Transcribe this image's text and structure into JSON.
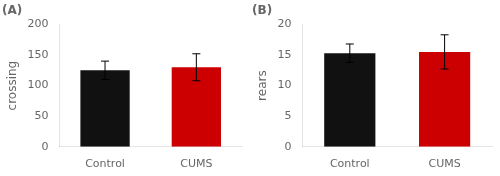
{
  "chart_data": [
    {
      "type": "bar",
      "title": "(A)",
      "categories": [
        "Control",
        "CUMS"
      ],
      "values": [
        125,
        130
      ],
      "errors": [
        15,
        22
      ],
      "colors": [
        "#111111",
        "#cc0000"
      ],
      "ylabel": "crossing",
      "ylim": [
        0,
        200
      ],
      "yticks": [
        0,
        50,
        100,
        150,
        200
      ],
      "grid": false
    },
    {
      "type": "bar",
      "title": "(B)",
      "categories": [
        "Control",
        "CUMS"
      ],
      "values": [
        15.3,
        15.5
      ],
      "errors": [
        1.5,
        2.8
      ],
      "colors": [
        "#111111",
        "#cc0000"
      ],
      "ylabel": "rears",
      "ylim": [
        0,
        20
      ],
      "yticks": [
        0,
        5,
        10,
        15,
        20
      ],
      "grid": false
    }
  ]
}
